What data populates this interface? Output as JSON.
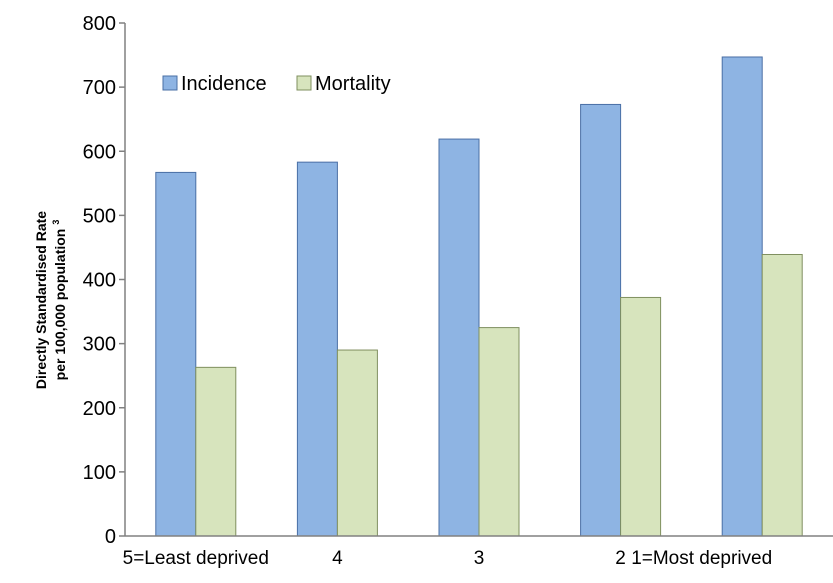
{
  "chart_data": {
    "type": "bar",
    "title": "",
    "xlabel": "",
    "ylabel_line1": "Directly Standardised Rate",
    "ylabel_line2": "per 100,000  population",
    "ylabel_superscript": "3",
    "categories": [
      "5=Least deprived",
      "4",
      "3",
      "2",
      "1=Most deprived"
    ],
    "series": [
      {
        "name": "Incidence",
        "color": "#8eb4e3",
        "values": [
          567,
          583,
          619,
          673,
          747
        ]
      },
      {
        "name": "Mortality",
        "color": "#d7e4bd",
        "values": [
          263,
          290,
          325,
          372,
          439
        ]
      }
    ],
    "ylim": [
      0,
      800
    ],
    "yticks": [
      "0",
      "100",
      "200",
      "300",
      "400",
      "500",
      "600",
      "700",
      "800"
    ],
    "grid": false,
    "legend_position": "top-left"
  }
}
